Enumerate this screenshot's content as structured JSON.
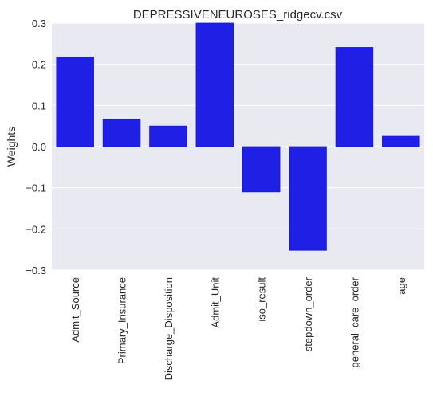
{
  "chart_data": {
    "type": "bar",
    "title": "DEPRESSIVENEUROSES_ridgecv.csv",
    "xlabel": "",
    "ylabel": "Weights",
    "ylim": [
      -0.3,
      0.3
    ],
    "yticks": [
      -0.3,
      -0.2,
      -0.1,
      0.0,
      0.1,
      0.2,
      0.3
    ],
    "ytick_labels": [
      "−0.3",
      "−0.2",
      "−0.1",
      "0.0",
      "0.1",
      "0.2",
      "0.3"
    ],
    "categories": [
      "Admit_Source",
      "Primary_Insurance",
      "Discharge_Disposition",
      "Admit_Unit",
      "iso_result",
      "stepdown_order",
      "general_care_order",
      "age"
    ],
    "values": [
      0.218,
      0.067,
      0.05,
      0.3,
      -0.11,
      -0.252,
      0.241,
      0.025
    ],
    "bar_color": "#1f1fe6",
    "background_color": "#e9e9f2",
    "grid": true
  }
}
